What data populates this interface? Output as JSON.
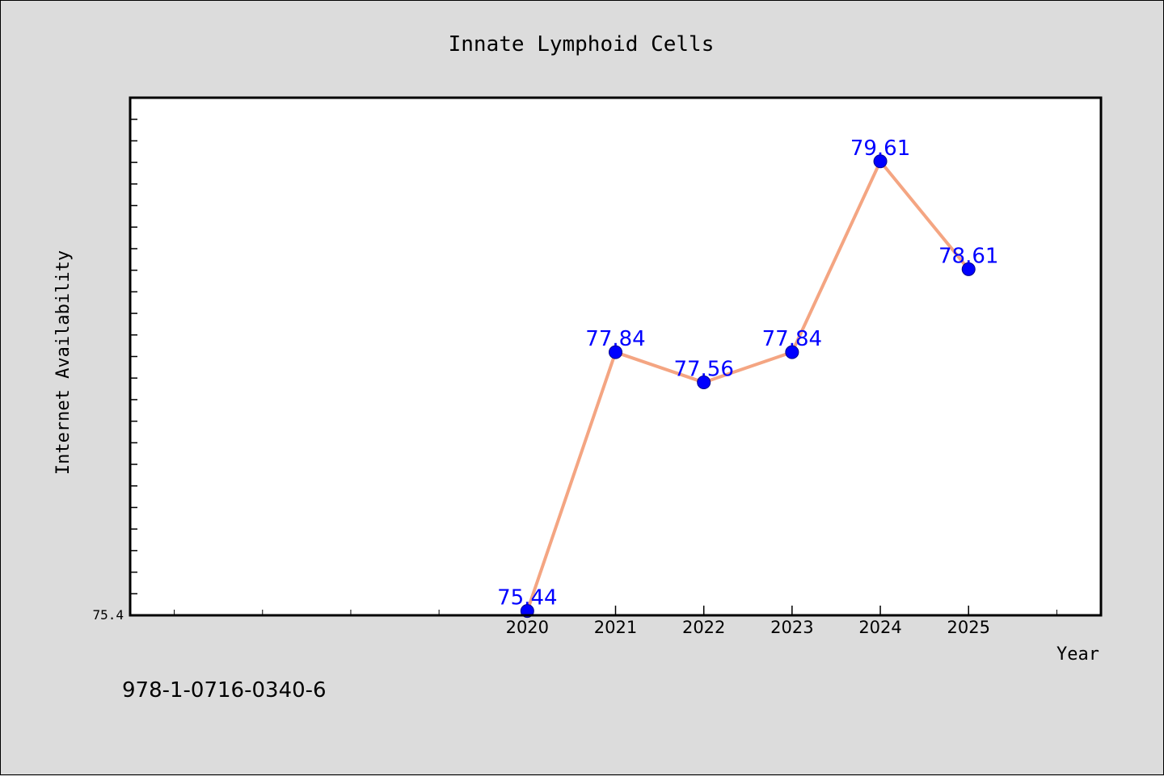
{
  "chart_data": {
    "type": "line",
    "title": "Innate Lymphoid Cells",
    "xlabel": "Year",
    "ylabel": "Internet Availability",
    "x": [
      2020,
      2021,
      2022,
      2023,
      2024,
      2025
    ],
    "x_tick_labels": [
      "2020",
      "2021",
      "2022",
      "2023",
      "2024",
      "2025"
    ],
    "series": [
      {
        "values": [
          75.44,
          77.84,
          77.56,
          77.84,
          79.61,
          78.61
        ],
        "data_labels": [
          "75.44",
          "77.84",
          "77.56",
          "77.84",
          "79.61",
          "78.61"
        ]
      }
    ],
    "xlim": [
      2015.5,
      2026.5
    ],
    "ylim": [
      75.4,
      80.2
    ],
    "y_tick_label": "75.4",
    "grid": false,
    "colors": {
      "line": "#f4a582",
      "marker": "#0000ff",
      "data_label": "#0000ff",
      "plot_bg": "#ffffff",
      "page_bg": "#dcdcdc"
    }
  },
  "footer_text": "978-1-0716-0340-6"
}
